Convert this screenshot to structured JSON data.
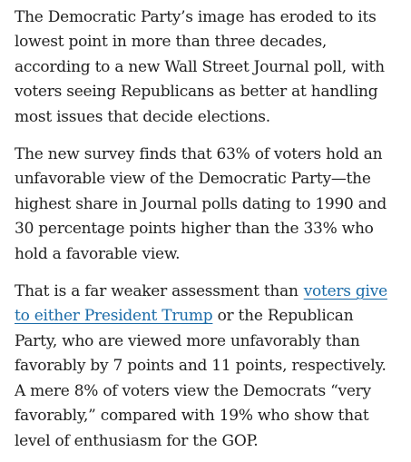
{
  "article": {
    "paragraph_1": "The Democratic Party’s image has eroded to its lowest point in more than three decades, according to a new Wall Street Journal poll, with voters seeing Republicans as better at handling most issues that decide elections.",
    "paragraph_2": "The new survey finds that 63% of voters hold an unfavorable view of the Democratic Party—the highest share in Journal polls dating to 1990 and 30 percentage points higher than the 33% who hold a favorable view.",
    "paragraph_3": {
      "before_link": "That is a far weaker assessment than",
      "link_text": "voters give to either President Trump",
      "after_link": " or the Republican Party, who are viewed more unfavorably than favorably by 7 points and 11 points, respectively. A mere 8% of voters view the Democrats “very favorably,” compared with 19% who show that level of enthusiasm for the GOP."
    }
  }
}
